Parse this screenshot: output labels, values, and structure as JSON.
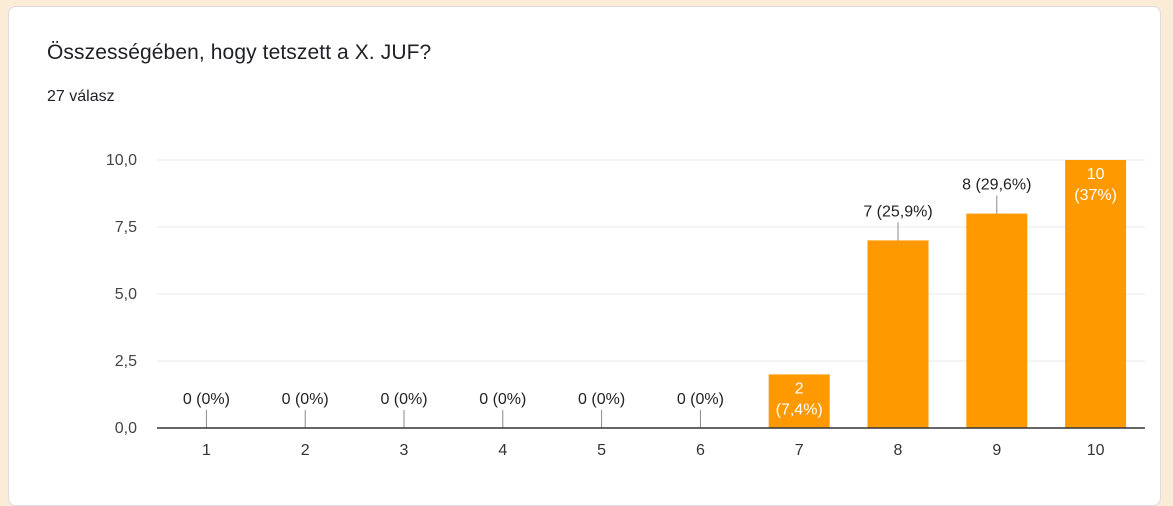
{
  "question": {
    "title": "Összességében, hogy tetszett a X. JUF?",
    "responses": "27 válasz"
  },
  "colors": {
    "bar": "#ff9900",
    "background": "#fbecd7",
    "grid": "#e8e8e8",
    "axis": "#333333"
  },
  "chart_data": {
    "type": "bar",
    "categories": [
      "1",
      "2",
      "3",
      "4",
      "5",
      "6",
      "7",
      "8",
      "9",
      "10"
    ],
    "values": [
      0,
      0,
      0,
      0,
      0,
      0,
      2,
      7,
      8,
      10
    ],
    "labels": [
      "0 (0%)",
      "0 (0%)",
      "0 (0%)",
      "0 (0%)",
      "0 (0%)",
      "0 (0%)",
      "2 (7,4%)",
      "7 (25,9%)",
      "8 (29,6%)",
      "10 (37%)"
    ],
    "inside_labels": [
      false,
      false,
      false,
      false,
      false,
      false,
      true,
      false,
      false,
      true
    ],
    "ylim": [
      0,
      10
    ],
    "yticks": [
      "0,0",
      "2,5",
      "5,0",
      "7,5",
      "10,0"
    ],
    "ytick_values": [
      0,
      2.5,
      5,
      7.5,
      10
    ],
    "grid": true,
    "legend": false
  }
}
